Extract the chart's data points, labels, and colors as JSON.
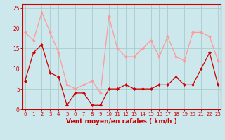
{
  "x": [
    0,
    1,
    2,
    3,
    4,
    5,
    6,
    7,
    8,
    9,
    10,
    11,
    12,
    13,
    14,
    15,
    16,
    17,
    18,
    19,
    20,
    21,
    22,
    23
  ],
  "wind_avg": [
    7,
    14,
    16,
    9,
    8,
    1,
    4,
    4,
    1,
    1,
    5,
    5,
    6,
    5,
    5,
    5,
    6,
    6,
    8,
    6,
    6,
    10,
    14,
    6
  ],
  "wind_gust": [
    19,
    17,
    24,
    19,
    14,
    6,
    5,
    6,
    7,
    4,
    23,
    15,
    13,
    13,
    15,
    17,
    13,
    18,
    13,
    12,
    19,
    19,
    18,
    12
  ],
  "bg_color": "#cce8ed",
  "grid_color": "#aacccc",
  "line_avg_color": "#cc0000",
  "line_gust_color": "#ff9999",
  "xlabel": "Vent moyen/en rafales ( km/h )",
  "xlabel_color": "#cc0000",
  "ylim": [
    0,
    26
  ],
  "yticks": [
    0,
    5,
    10,
    15,
    20,
    25
  ],
  "xticks": [
    0,
    1,
    2,
    3,
    4,
    5,
    6,
    7,
    8,
    9,
    10,
    11,
    12,
    13,
    14,
    15,
    16,
    17,
    18,
    19,
    20,
    21,
    22,
    23
  ],
  "tick_color": "#cc0000",
  "axes_color": "#cc0000",
  "spine_color": "#cc0000"
}
